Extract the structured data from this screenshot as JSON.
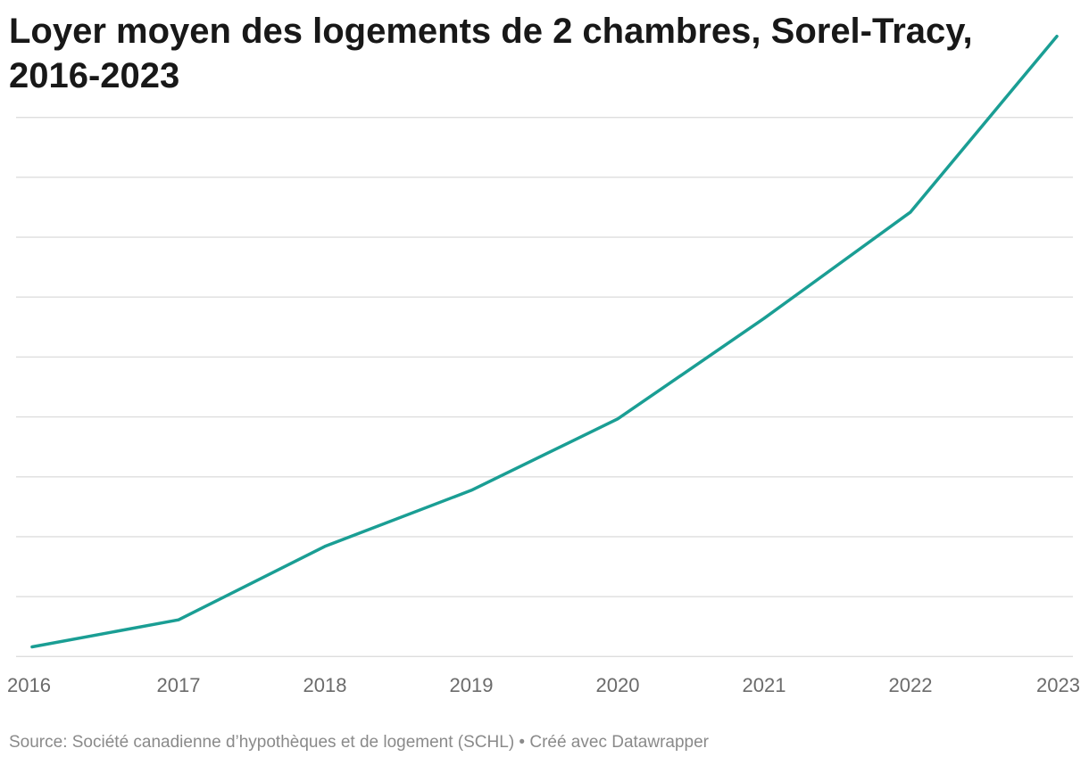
{
  "title": "Loyer moyen des logements de 2 chambres, Sorel-Tracy, 2016-2023",
  "footer": {
    "source": "Source: Société canadienne d’hypothèques et de logement (SCHL) • Créé avec Datawrapper"
  },
  "chart_data": {
    "type": "line",
    "title": "Loyer moyen des logements de 2 chambres, Sorel-Tracy, 2016-2023",
    "x": [
      "2016",
      "2017",
      "2018",
      "2019",
      "2020",
      "2021",
      "2022",
      "2023"
    ],
    "series": [
      {
        "values": [
          580,
          594,
          632,
          661,
          698,
          750,
          805,
          896
        ]
      }
    ],
    "ylim": [
      565,
      870
    ],
    "y_gridlines": [
      575,
      606,
      637,
      668,
      699,
      730,
      761,
      792,
      823,
      854
    ],
    "y_tick_labels_visible": false,
    "grid": true,
    "line_color": "#1a9e94",
    "grid_color": "#dedede"
  }
}
